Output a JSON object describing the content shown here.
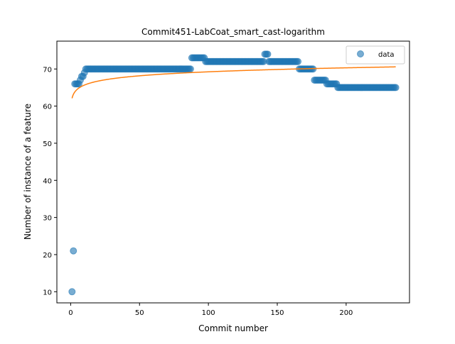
{
  "chart_data": {
    "type": "scatter",
    "title": "Commit451-LabCoat_smart_cast-logarithm",
    "xlabel": "Commit number",
    "ylabel": "Number of instance of a feature",
    "xlim": [
      -10,
      246
    ],
    "ylim": [
      7,
      77.5
    ],
    "xticks": [
      0,
      50,
      100,
      150,
      200
    ],
    "yticks": [
      10,
      20,
      30,
      40,
      50,
      60,
      70
    ],
    "grid": false,
    "legend": {
      "position": "top-right",
      "entries": [
        "data"
      ]
    },
    "colors": {
      "data": "#1f77b4",
      "fit": "#ff7f0e"
    },
    "series": [
      {
        "name": "data",
        "kind": "scatter",
        "segments": [
          {
            "x_from": 1,
            "x_to": 1,
            "y": 10
          },
          {
            "x_from": 2,
            "x_to": 2,
            "y": 21
          },
          {
            "x_from": 3,
            "x_to": 6,
            "y": 66
          },
          {
            "x_from": 7,
            "x_to": 7,
            "y": 67
          },
          {
            "x_from": 8,
            "x_to": 9,
            "y": 68
          },
          {
            "x_from": 10,
            "x_to": 10,
            "y": 69
          },
          {
            "x_from": 11,
            "x_to": 87,
            "y": 70
          },
          {
            "x_from": 88,
            "x_to": 97,
            "y": 73
          },
          {
            "x_from": 98,
            "x_to": 140,
            "y": 72
          },
          {
            "x_from": 141,
            "x_to": 143,
            "y": 74
          },
          {
            "x_from": 144,
            "x_to": 165,
            "y": 72
          },
          {
            "x_from": 166,
            "x_to": 176,
            "y": 70
          },
          {
            "x_from": 177,
            "x_to": 185,
            "y": 67
          },
          {
            "x_from": 186,
            "x_to": 193,
            "y": 66
          },
          {
            "x_from": 194,
            "x_to": 236,
            "y": 65
          }
        ]
      },
      {
        "kind": "line",
        "fit": {
          "model": "logarithm",
          "a": 1.55,
          "b": 62.1
        },
        "x_range": [
          1,
          236
        ]
      }
    ]
  }
}
